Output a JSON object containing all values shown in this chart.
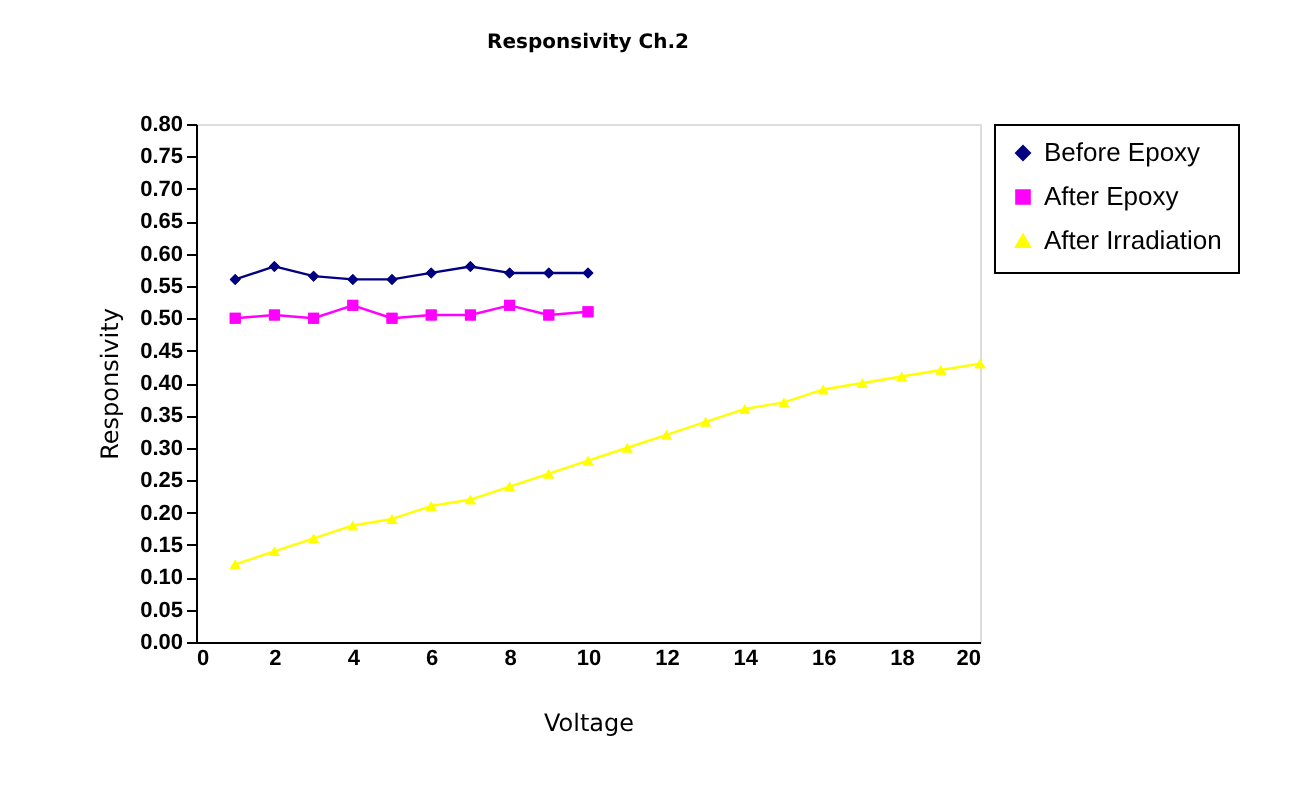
{
  "chart_data": {
    "type": "line",
    "title": "Responsivity Ch.2",
    "xlabel": "Voltage",
    "ylabel": "Responsivity",
    "xlim": [
      0,
      20
    ],
    "xticks": [
      0,
      2,
      4,
      6,
      8,
      10,
      12,
      14,
      16,
      18,
      20
    ],
    "ylim": [
      0,
      0.8
    ],
    "yticks": [
      {
        "value": 0,
        "label": "0.00"
      },
      {
        "value": 0.05,
        "label": "0.05"
      },
      {
        "value": 0.1,
        "label": "0.10"
      },
      {
        "value": 0.15,
        "label": "0.15"
      },
      {
        "value": 0.2,
        "label": "0.20"
      },
      {
        "value": 0.25,
        "label": "0.25"
      },
      {
        "value": 0.3,
        "label": "0.30"
      },
      {
        "value": 0.35,
        "label": "0.35"
      },
      {
        "value": 0.4,
        "label": "0.40"
      },
      {
        "value": 0.45,
        "label": "0.45"
      },
      {
        "value": 0.5,
        "label": "0.50"
      },
      {
        "value": 0.55,
        "label": "0.55"
      },
      {
        "value": 0.6,
        "label": "0.60"
      },
      {
        "value": 0.65,
        "label": "0.65"
      },
      {
        "value": 0.7,
        "label": "0.70"
      },
      {
        "value": 0.75,
        "label": "0.75"
      },
      {
        "value": 0.8,
        "label": "0.80"
      }
    ],
    "grid": false,
    "legend": "right",
    "line_style": "solid",
    "series": [
      {
        "name": "Before Epoxy",
        "color": "#000080",
        "marker": "diamond",
        "x": [
          1,
          2,
          3,
          4,
          5,
          6,
          7,
          8,
          9,
          10
        ],
        "values": [
          0.56,
          0.58,
          0.565,
          0.56,
          0.56,
          0.57,
          0.58,
          0.57,
          0.57,
          0.57
        ]
      },
      {
        "name": "After Epoxy",
        "color": "#ff00ff",
        "marker": "square",
        "x": [
          1,
          2,
          3,
          4,
          5,
          6,
          7,
          8,
          9,
          10
        ],
        "values": [
          0.5,
          0.505,
          0.5,
          0.52,
          0.5,
          0.505,
          0.505,
          0.52,
          0.505,
          0.51
        ]
      },
      {
        "name": "After Irradiation",
        "color": "#ffff00",
        "marker": "triangle",
        "x": [
          1,
          2,
          3,
          4,
          5,
          6,
          7,
          8,
          9,
          10,
          11,
          12,
          13,
          14,
          15,
          16,
          17,
          18,
          19,
          20
        ],
        "values": [
          0.12,
          0.14,
          0.16,
          0.18,
          0.19,
          0.21,
          0.22,
          0.24,
          0.26,
          0.28,
          0.3,
          0.32,
          0.34,
          0.36,
          0.37,
          0.39,
          0.4,
          0.41,
          0.42,
          0.43
        ]
      }
    ]
  }
}
